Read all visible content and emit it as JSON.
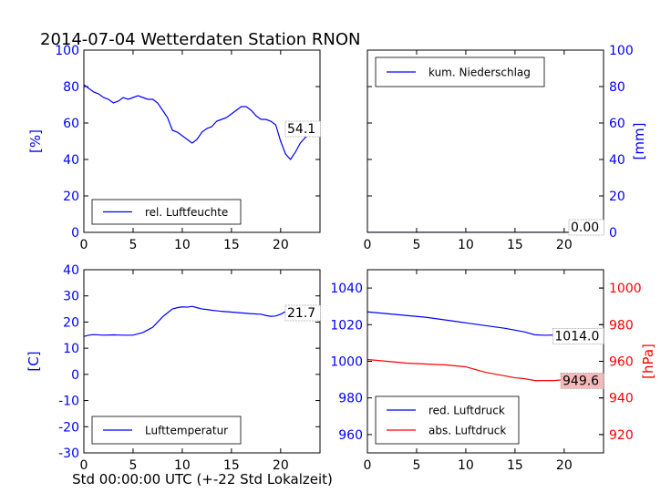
{
  "figure": {
    "title": "2014-07-04 Wetterdaten Station RNON",
    "xlabel": "Std 00:00:00 UTC (+-22 Std Lokalzeit)"
  },
  "colors": {
    "blue": "#0000ff",
    "red": "#ff0000",
    "black": "#000000",
    "value_box_red": "#f4b9b9"
  },
  "chart_data": [
    {
      "id": "humidity",
      "type": "line",
      "ylabel": "[%]",
      "ylabel_color": "#0000ff",
      "ylim": [
        0,
        100
      ],
      "yticks": [
        0,
        20,
        40,
        60,
        80,
        100
      ],
      "xlim": [
        0,
        24
      ],
      "xticks": [
        0,
        5,
        10,
        15,
        20
      ],
      "legend": "lower-left",
      "series": [
        {
          "name": "rel. Luftfeuchte",
          "color": "#0000ff",
          "x": [
            0,
            0.5,
            1,
            1.5,
            2,
            2.5,
            3,
            3.5,
            4,
            4.5,
            5,
            5.5,
            6,
            6.5,
            7,
            7.5,
            8,
            8.5,
            9,
            9.5,
            10,
            10.5,
            11,
            11.5,
            12,
            12.5,
            13,
            13.5,
            14,
            14.5,
            15,
            15.5,
            16,
            16.5,
            17,
            17.5,
            18,
            18.5,
            19,
            19.5,
            20,
            20.5,
            21,
            21.5,
            22,
            22.5,
            23,
            23.5,
            24
          ],
          "y": [
            81,
            79,
            77,
            76,
            74,
            73,
            71,
            72,
            74,
            73,
            74,
            75,
            74,
            73,
            73,
            71,
            67,
            63,
            56,
            55,
            53,
            51,
            49,
            51,
            55,
            57,
            58,
            61,
            62,
            63,
            65,
            67,
            69,
            69,
            67,
            64,
            62,
            62,
            61,
            59,
            50,
            43,
            40,
            44,
            49,
            52,
            54,
            53,
            54
          ]
        }
      ],
      "annotation": "54.1"
    },
    {
      "id": "precip",
      "type": "line",
      "ylabel": "[mm]",
      "ylabel_color": "#0000ff",
      "ylim": [
        0,
        100
      ],
      "yticks": [
        0,
        20,
        40,
        60,
        80,
        100
      ],
      "xlim": [
        0,
        24
      ],
      "xticks": [
        0,
        5,
        10,
        15,
        20
      ],
      "legend": "upper-left",
      "series": [
        {
          "name": "kum. Niederschlag",
          "color": "#0000ff",
          "x": [
            0,
            24
          ],
          "y": [
            0,
            0
          ]
        }
      ],
      "annotation": "0.00"
    },
    {
      "id": "temperature",
      "type": "line",
      "ylabel": "[C]",
      "ylabel_color": "#0000ff",
      "ylim": [
        -30,
        40
      ],
      "yticks": [
        -30,
        -20,
        -10,
        0,
        10,
        20,
        30,
        40
      ],
      "xlim": [
        0,
        24
      ],
      "xticks": [
        0,
        5,
        10,
        15,
        20
      ],
      "legend": "lower-left",
      "series": [
        {
          "name": "Lufttemperatur",
          "color": "#0000ff",
          "x": [
            0,
            0.5,
            1,
            2,
            3,
            4,
            5,
            5.5,
            6,
            6.5,
            7,
            7.5,
            8,
            8.5,
            9,
            9.5,
            10,
            10.5,
            11,
            11.5,
            12,
            12.5,
            13,
            13.5,
            14,
            15,
            16,
            17,
            18,
            18.5,
            19,
            19.5,
            20,
            20.5,
            21,
            22,
            23,
            24
          ],
          "y": [
            14.5,
            15,
            15.2,
            15,
            15.1,
            15,
            15,
            15.5,
            16,
            17,
            18,
            20,
            22,
            23.5,
            25,
            25.5,
            25.8,
            25.7,
            26,
            25.5,
            25,
            24.8,
            24.5,
            24.3,
            24.1,
            23.8,
            23.5,
            23.2,
            23,
            22.5,
            22.2,
            22.3,
            23,
            24,
            22.5,
            22,
            21.8,
            21.7
          ]
        }
      ],
      "annotation": "21.7"
    },
    {
      "id": "pressure",
      "type": "line",
      "ylabel": "",
      "ylabel_color": "#0000ff",
      "ylim": [
        950,
        1050
      ],
      "yticks": [
        960,
        980,
        1000,
        1020,
        1040
      ],
      "ylabel_right": "[hPa]",
      "ylabel_right_color": "#ff0000",
      "ylim_right": [
        910,
        1010
      ],
      "yticks_right": [
        920,
        940,
        960,
        980,
        1000
      ],
      "xlim": [
        0,
        24
      ],
      "xticks": [
        0,
        5,
        10,
        15,
        20
      ],
      "legend": "lower-left",
      "series": [
        {
          "name": "red. Luftdruck",
          "axis": "left",
          "color": "#0000ff",
          "x": [
            0,
            2,
            4,
            6,
            8,
            10,
            12,
            14,
            16,
            17,
            18,
            20,
            22,
            24
          ],
          "y": [
            1027,
            1026,
            1025,
            1024,
            1022.5,
            1021,
            1019.5,
            1018,
            1016,
            1014.5,
            1014.2,
            1014.5,
            1014.3,
            1014
          ]
        },
        {
          "name": "abs. Luftdruck",
          "axis": "right",
          "color": "#ff0000",
          "x": [
            0,
            2,
            4,
            6,
            8,
            9,
            10,
            11,
            12,
            13,
            14,
            15,
            16,
            17,
            18,
            19,
            20,
            22,
            24
          ],
          "y": [
            961,
            960,
            959,
            958.5,
            958,
            957.5,
            957,
            955.5,
            954,
            953,
            952,
            951,
            950.5,
            949.5,
            949.5,
            949.5,
            950,
            949.8,
            949.6
          ]
        }
      ],
      "annotations": [
        {
          "text": "1014.0",
          "axis": "left",
          "value": 1014.0
        },
        {
          "text": "949.6",
          "axis": "right",
          "value": 949.6
        }
      ]
    }
  ]
}
